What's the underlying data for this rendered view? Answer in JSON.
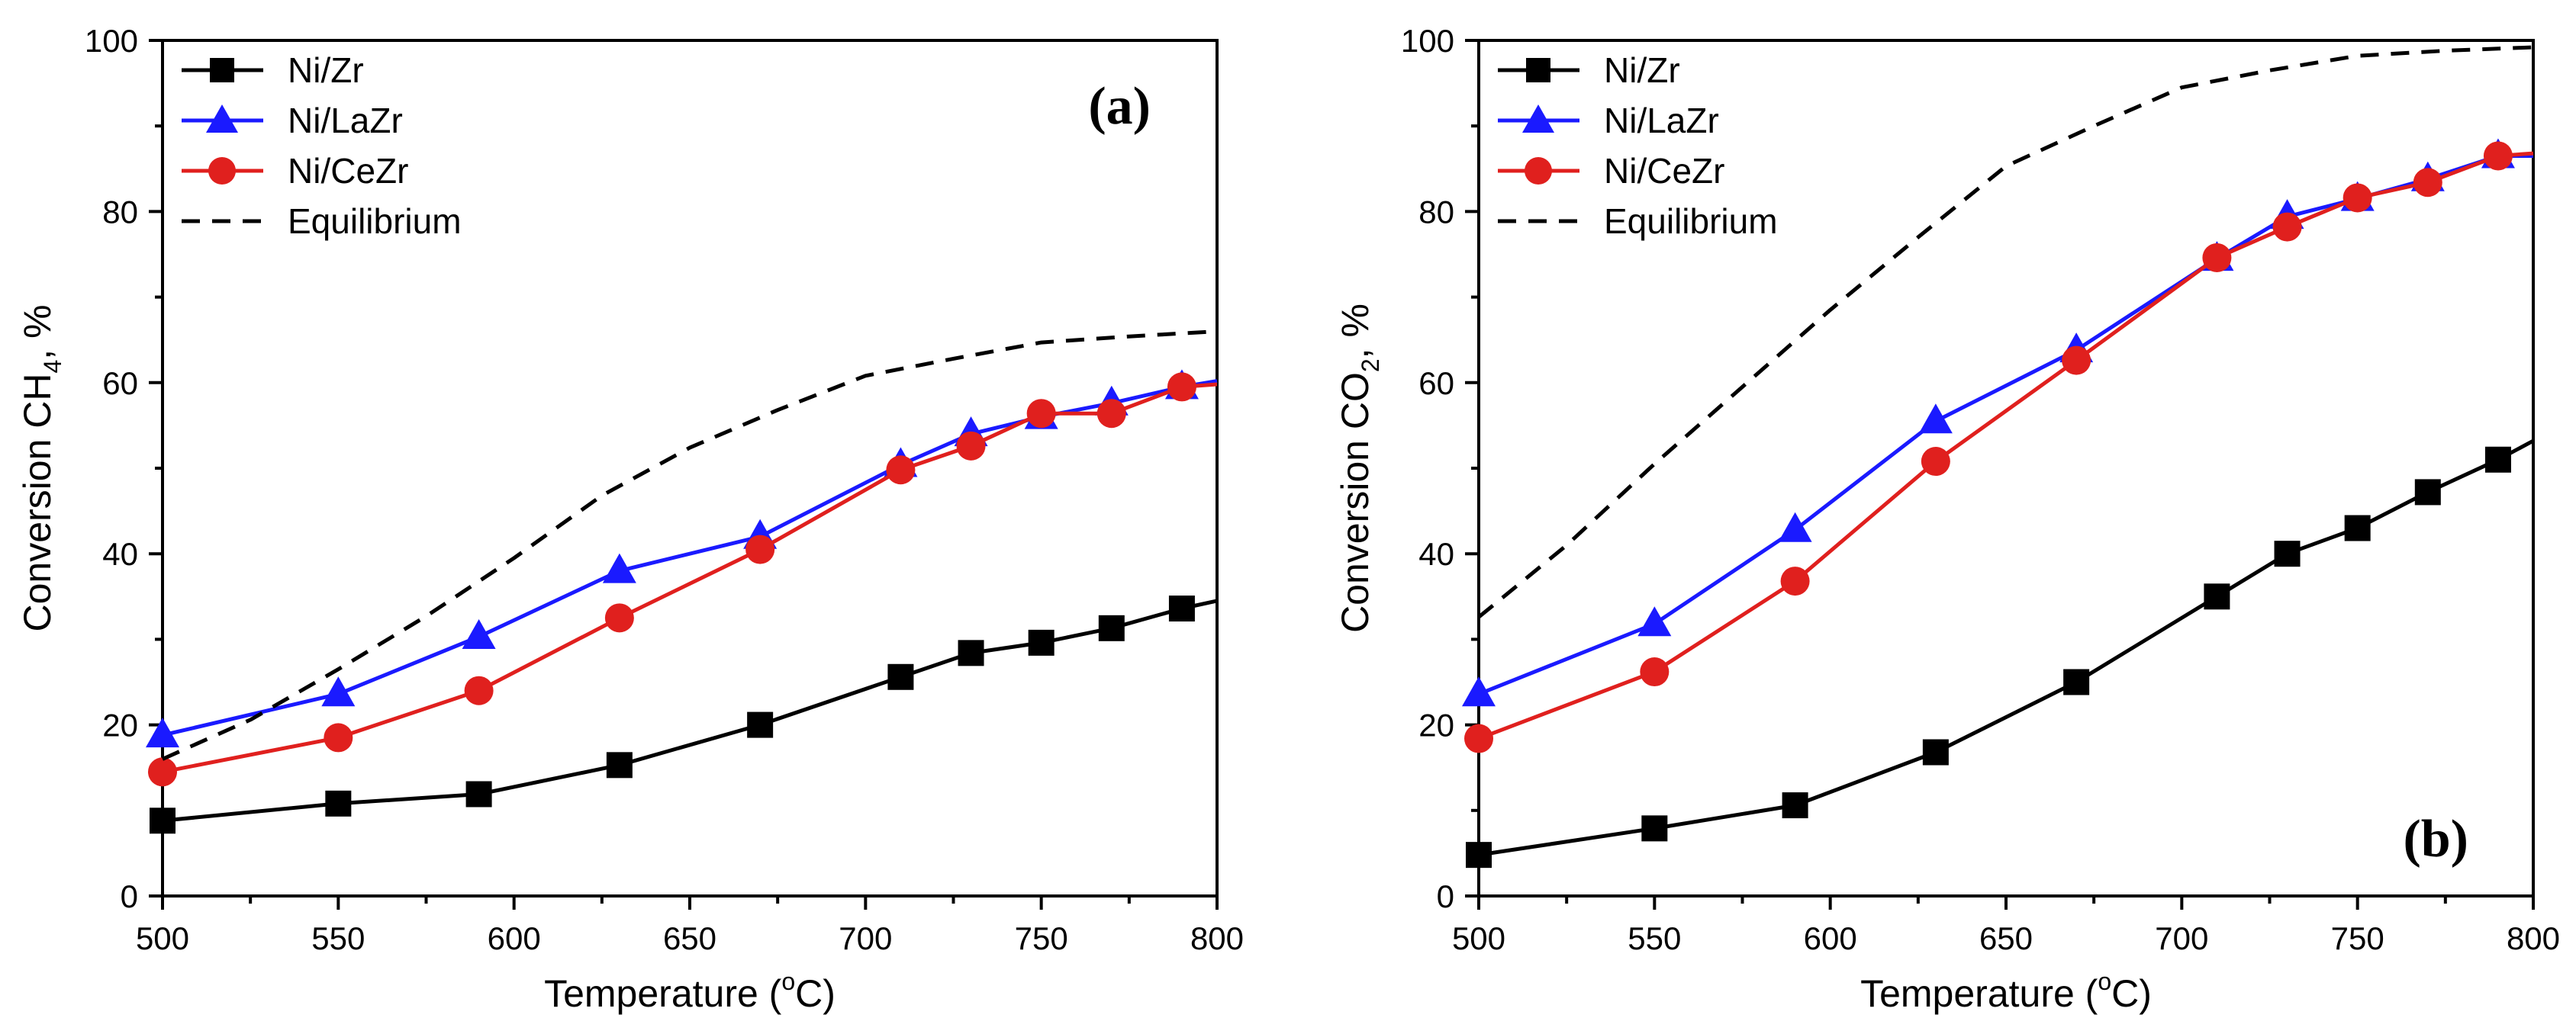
{
  "chart_data": [
    {
      "type": "line",
      "panel_label": "(a)",
      "xlabel_main": "Temperature (",
      "xlabel_deg": "o",
      "xlabel_end": "C)",
      "ylabel_main": "Conversion CH",
      "ylabel_sub": "4",
      "ylabel_end": ", %",
      "xlim": [
        500,
        800
      ],
      "ylim": [
        0,
        100
      ],
      "xticks": [
        "500",
        "550",
        "600",
        "650",
        "700",
        "750",
        "800"
      ],
      "yticks": [
        "0",
        "20",
        "40",
        "60",
        "80",
        "100"
      ],
      "legend_position": "top-left",
      "grid": false,
      "series": [
        {
          "name": "Ni/Zr",
          "color": "#000000",
          "marker": "square",
          "x": [
            500,
            550,
            590,
            630,
            670,
            710,
            730,
            750,
            770,
            790,
            800
          ],
          "y": [
            8.8,
            10.8,
            11.9,
            15.3,
            20.0,
            25.6,
            28.4,
            29.6,
            31.3,
            33.6,
            34.5
          ],
          "marker_count": 10
        },
        {
          "name": "Ni/LaZr",
          "color": "#1a1aff",
          "marker": "triangle",
          "x": [
            500,
            550,
            590,
            630,
            670,
            710,
            730,
            750,
            770,
            790,
            800
          ],
          "y": [
            18.8,
            23.6,
            30.3,
            38.0,
            42.0,
            50.4,
            54.0,
            56.0,
            57.6,
            59.5,
            60.2
          ],
          "marker_count": 10
        },
        {
          "name": "Ni/CeZr",
          "color": "#e0201e",
          "marker": "circle",
          "x": [
            500,
            550,
            590,
            630,
            670,
            710,
            730,
            750,
            770,
            790,
            800
          ],
          "y": [
            14.5,
            18.5,
            24.0,
            32.5,
            40.5,
            49.8,
            52.6,
            56.4,
            56.4,
            59.5,
            59.8
          ],
          "marker_count": 10
        },
        {
          "name": "Equilibrium",
          "color": "#000000",
          "marker": "none",
          "dashed": true,
          "x": [
            500,
            525,
            550,
            575,
            600,
            625,
            650,
            675,
            700,
            725,
            750,
            775,
            800
          ],
          "y": [
            16.0,
            20.6,
            26.5,
            32.7,
            39.5,
            46.8,
            52.4,
            56.8,
            60.8,
            62.8,
            64.7,
            65.4,
            66.0
          ]
        }
      ]
    },
    {
      "type": "line",
      "panel_label": "(b)",
      "xlabel_main": "Temperature (",
      "xlabel_deg": "o",
      "xlabel_end": "C)",
      "ylabel_main": "Conversion CO",
      "ylabel_sub": "2",
      "ylabel_end": ", %",
      "xlim": [
        500,
        800
      ],
      "ylim": [
        0,
        100
      ],
      "xticks": [
        "500",
        "550",
        "600",
        "650",
        "700",
        "750",
        "800"
      ],
      "yticks": [
        "0",
        "20",
        "40",
        "60",
        "80",
        "100"
      ],
      "legend_position": "top-left",
      "grid": false,
      "series": [
        {
          "name": "Ni/Zr",
          "color": "#000000",
          "marker": "square",
          "x": [
            500,
            550,
            590,
            630,
            670,
            710,
            730,
            750,
            770,
            790,
            800
          ],
          "y": [
            4.8,
            7.9,
            10.6,
            16.8,
            25.0,
            35.0,
            40.0,
            43.0,
            47.2,
            51.0,
            53.2
          ],
          "marker_count": 10
        },
        {
          "name": "Ni/LaZr",
          "color": "#1a1aff",
          "marker": "triangle",
          "x": [
            500,
            550,
            590,
            630,
            670,
            710,
            730,
            750,
            770,
            790,
            800
          ],
          "y": [
            23.6,
            31.8,
            42.8,
            55.5,
            63.8,
            74.5,
            79.4,
            81.5,
            83.8,
            86.5,
            86.5
          ],
          "marker_count": 10
        },
        {
          "name": "Ni/CeZr",
          "color": "#e0201e",
          "marker": "circle",
          "x": [
            500,
            550,
            590,
            630,
            670,
            710,
            730,
            750,
            770,
            790,
            800
          ],
          "y": [
            18.4,
            26.2,
            36.8,
            50.8,
            62.6,
            74.6,
            78.2,
            81.6,
            83.4,
            86.5,
            86.8
          ],
          "marker_count": 10
        },
        {
          "name": "Equilibrium",
          "color": "#000000",
          "marker": "none",
          "dashed": true,
          "x": [
            500,
            525,
            550,
            575,
            600,
            625,
            650,
            675,
            700,
            725,
            750,
            775,
            800
          ],
          "y": [
            32.6,
            41.0,
            50.5,
            59.5,
            68.5,
            77.0,
            85.3,
            90.0,
            94.5,
            96.5,
            98.2,
            98.8,
            99.2
          ]
        }
      ]
    }
  ]
}
